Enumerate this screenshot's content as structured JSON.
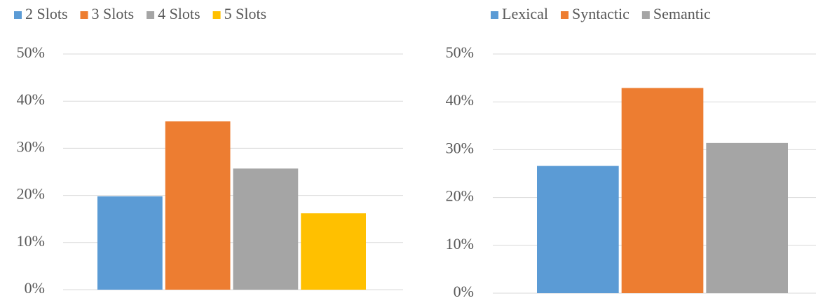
{
  "chart_data": [
    {
      "type": "bar",
      "categories": [
        null
      ],
      "series": [
        {
          "name": "2 Slots",
          "color": "#5b9bd5",
          "values": [
            19.8
          ]
        },
        {
          "name": "3 Slots",
          "color": "#ed7d31",
          "values": [
            35.7
          ]
        },
        {
          "name": "4 Slots",
          "color": "#a5a5a5",
          "values": [
            25.7
          ]
        },
        {
          "name": "5 Slots",
          "color": "#ffc000",
          "values": [
            16.2
          ]
        }
      ],
      "ylim": [
        0,
        50
      ],
      "yticks": [
        {
          "value": 0,
          "label": "0%"
        },
        {
          "value": 10,
          "label": "10%"
        },
        {
          "value": 20,
          "label": "20%"
        },
        {
          "value": 30,
          "label": "30%"
        },
        {
          "value": 40,
          "label": "40%"
        },
        {
          "value": 50,
          "label": "50%"
        }
      ],
      "grid": true,
      "legend": "top"
    },
    {
      "type": "bar",
      "categories": [
        null
      ],
      "series": [
        {
          "name": "Lexical",
          "color": "#5b9bd5",
          "values": [
            26.6
          ]
        },
        {
          "name": "Syntactic",
          "color": "#ed7d31",
          "values": [
            42.9
          ]
        },
        {
          "name": "Semantic",
          "color": "#a5a5a5",
          "values": [
            31.4
          ]
        }
      ],
      "ylim": [
        0,
        50
      ],
      "yticks": [
        {
          "value": 0,
          "label": "0%"
        },
        {
          "value": 10,
          "label": "10%"
        },
        {
          "value": 20,
          "label": "20%"
        },
        {
          "value": 30,
          "label": "30%"
        },
        {
          "value": 40,
          "label": "40%"
        },
        {
          "value": 50,
          "label": "50%"
        }
      ],
      "grid": true,
      "legend": "top"
    }
  ]
}
